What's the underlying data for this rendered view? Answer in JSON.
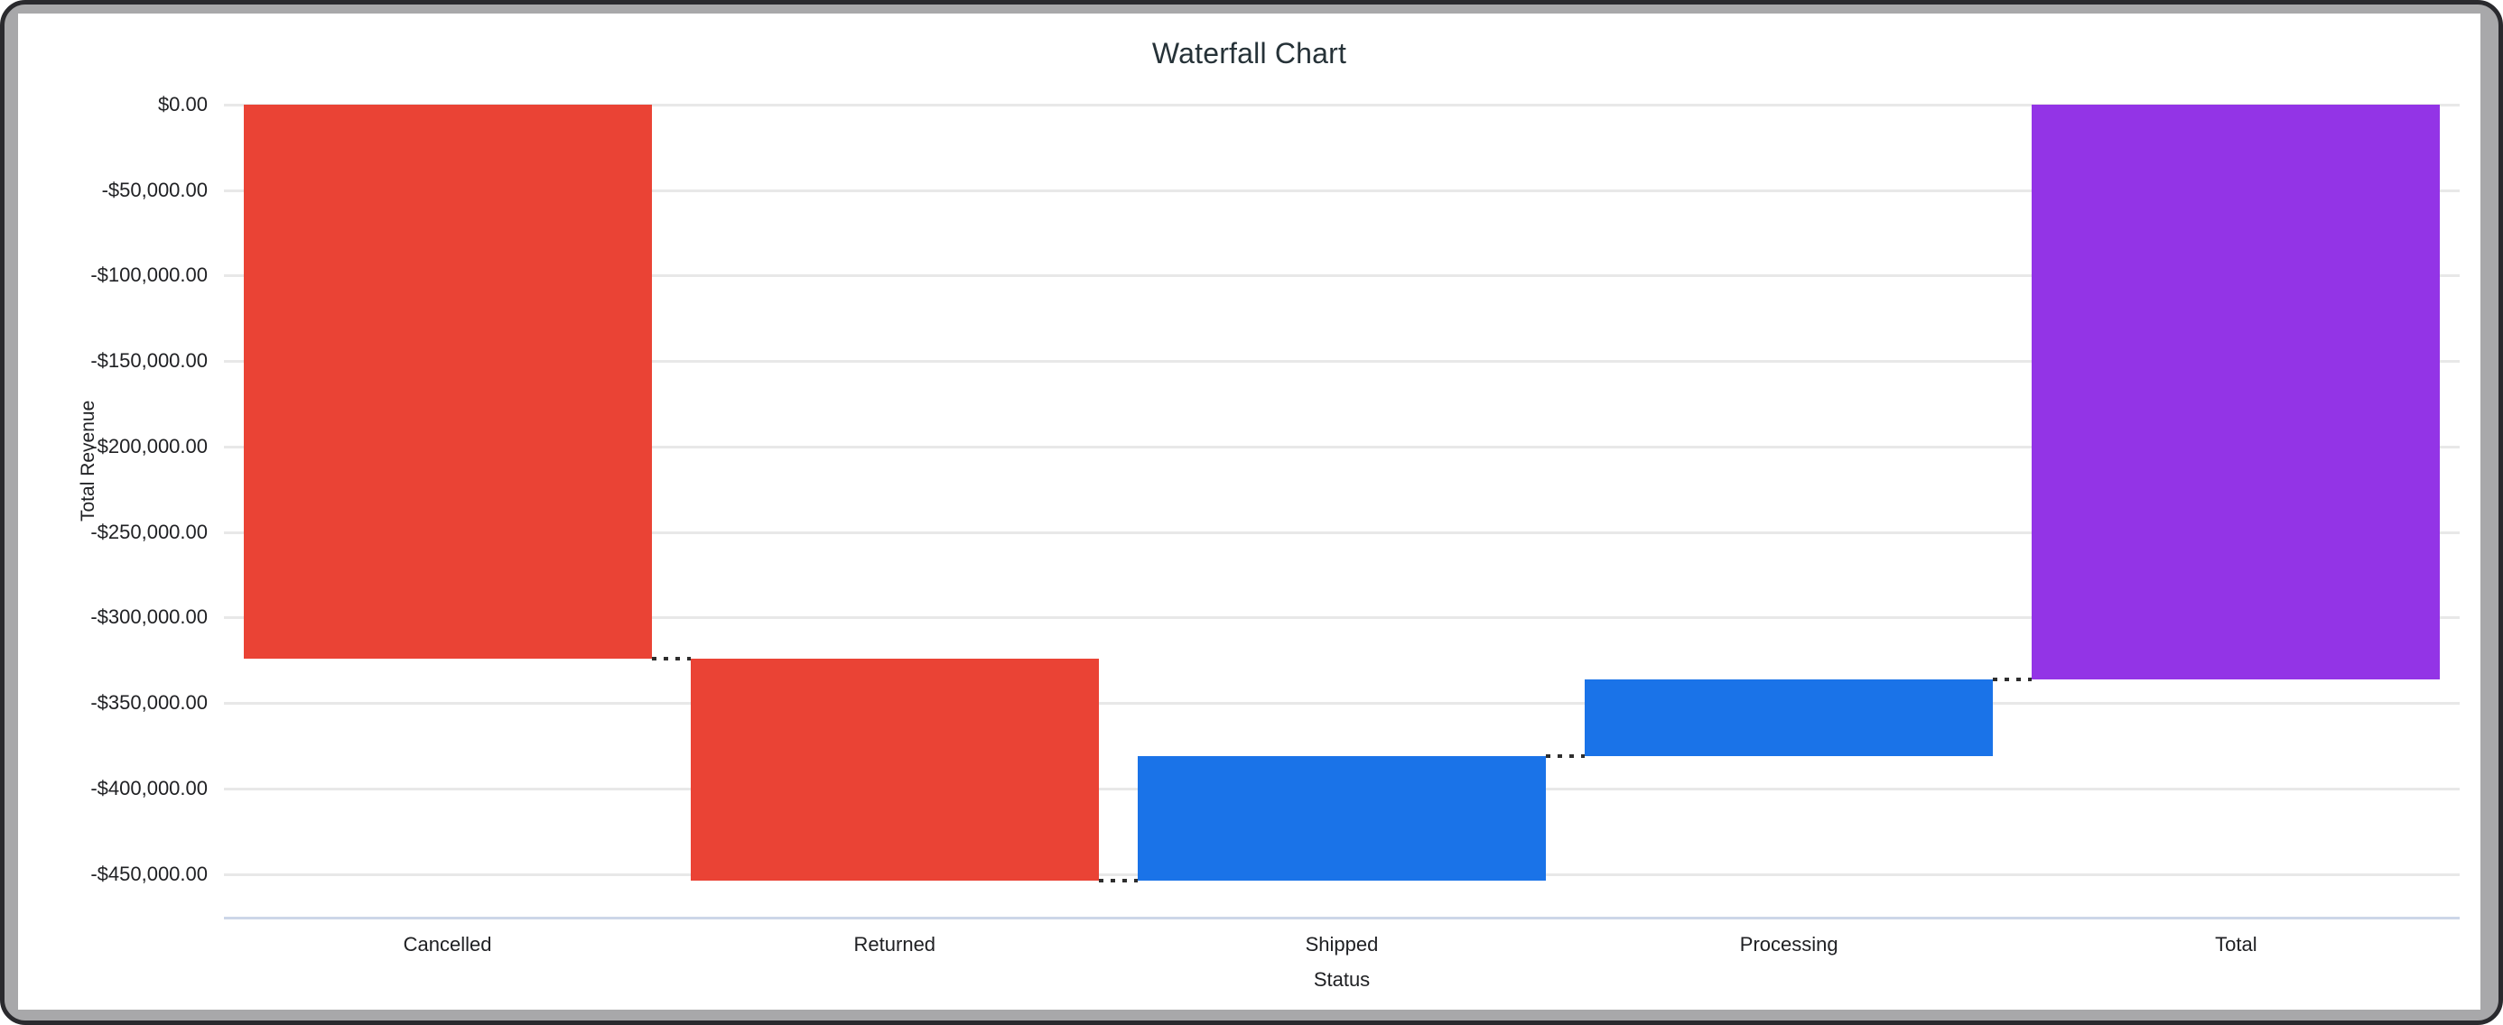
{
  "window": {
    "frame_color": "#a8a8aa",
    "border_color": "#2a2a2e",
    "surface_color": "#ffffff"
  },
  "chart_data": {
    "type": "waterfall",
    "title": "Waterfall Chart",
    "xlabel": "Status",
    "ylabel": "Total Revenue",
    "categories": [
      "Cancelled",
      "Returned",
      "Shipped",
      "Processing",
      "Total"
    ],
    "bars": [
      {
        "label": "Cancelled",
        "role": "decrease",
        "delta": -324000,
        "start": 0,
        "end": -324000
      },
      {
        "label": "Returned",
        "role": "decrease",
        "delta": -130000,
        "start": -324000,
        "end": -454000
      },
      {
        "label": "Shipped",
        "role": "increase",
        "delta": 73000,
        "start": -454000,
        "end": -381000
      },
      {
        "label": "Processing",
        "role": "increase",
        "delta": 45000,
        "start": -381000,
        "end": -336000
      },
      {
        "label": "Total",
        "role": "total",
        "delta": -336000,
        "start": 0,
        "end": -336000
      }
    ],
    "colors": {
      "decrease": "#EA4335",
      "increase": "#1A73E8",
      "total": "#9334E6",
      "gridline": "#e8e8e8",
      "baseline": "#ccd6e8",
      "connector": "#2e2e2e",
      "title_text": "#263238",
      "label_text": "#202124"
    },
    "y_ticks": [
      {
        "label": "$0.00",
        "value": 0
      },
      {
        "label": "-$50,000.00",
        "value": -50000
      },
      {
        "label": "-$100,000.00",
        "value": -100000
      },
      {
        "label": "-$150,000.00",
        "value": -150000
      },
      {
        "label": "-$200,000.00",
        "value": -200000
      },
      {
        "label": "-$250,000.00",
        "value": -250000
      },
      {
        "label": "-$300,000.00",
        "value": -300000
      },
      {
        "label": "-$350,000.00",
        "value": -350000
      },
      {
        "label": "-$400,000.00",
        "value": -400000
      },
      {
        "label": "-$450,000.00",
        "value": -450000
      }
    ],
    "ylim": [
      -475000,
      0
    ],
    "grid": true,
    "legend": "none",
    "connector_style": "dotted"
  }
}
